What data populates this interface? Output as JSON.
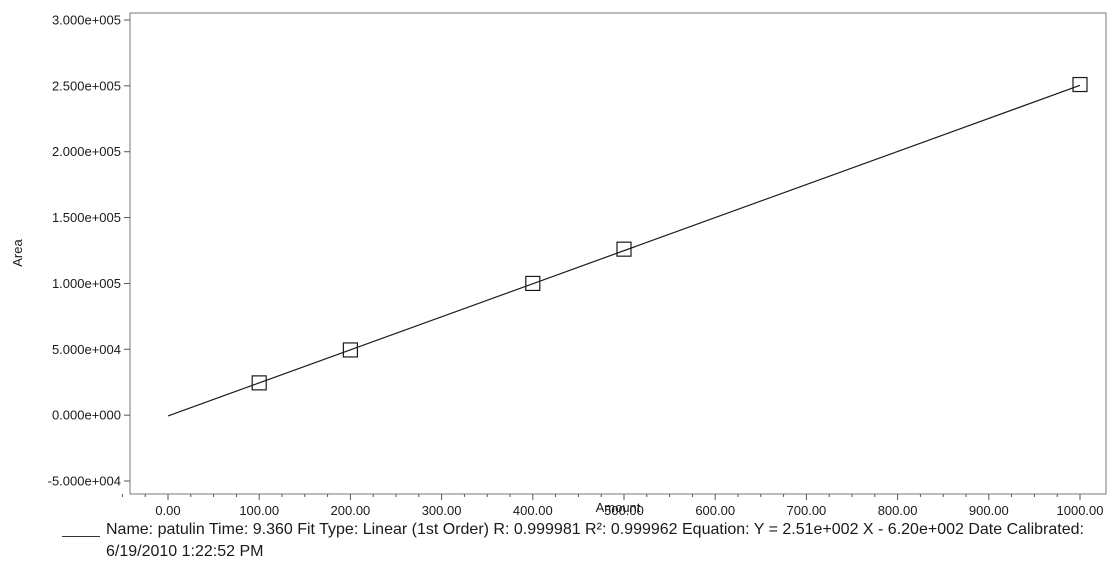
{
  "chart_data": {
    "type": "scatter",
    "xlabel": "Amount",
    "ylabel": "Area",
    "xlim": [
      -50,
      1020
    ],
    "ylim": [
      -50000,
      300000
    ],
    "x_ticks": [
      "0.00",
      "100.00",
      "200.00",
      "300.00",
      "400.00",
      "500.00",
      "600.00",
      "700.00",
      "800.00",
      "900.00",
      "1000.00"
    ],
    "x_tick_values": [
      0,
      100,
      200,
      300,
      400,
      500,
      600,
      700,
      800,
      900,
      1000
    ],
    "y_ticks": [
      "3.000e+005",
      "2.500e+005",
      "2.000e+005",
      "1.500e+005",
      "1.000e+005",
      "5.000e+004",
      "0.000e+000",
      "-5.000e+004"
    ],
    "y_tick_values": [
      300000,
      250000,
      200000,
      150000,
      100000,
      50000,
      0,
      -50000
    ],
    "grid": false,
    "points": [
      {
        "x": 100,
        "y": 24500
      },
      {
        "x": 200,
        "y": 49500
      },
      {
        "x": 400,
        "y": 100000
      },
      {
        "x": 500,
        "y": 126000
      },
      {
        "x": 1000,
        "y": 251000
      }
    ],
    "fit_line": {
      "x": [
        0,
        1000
      ],
      "y": [
        -620,
        250380
      ]
    },
    "marker": "open-square",
    "line_color": "#1a1a1a",
    "legend_text": "Name: patulin  Time: 9.360  Fit Type: Linear (1st Order)  R: 0.999981  R²: 0.999962  Equation: Y = 2.51e+002 X - 6.20e+002  Date Calibrated: 6/19/2010 1:22:52 PM"
  }
}
